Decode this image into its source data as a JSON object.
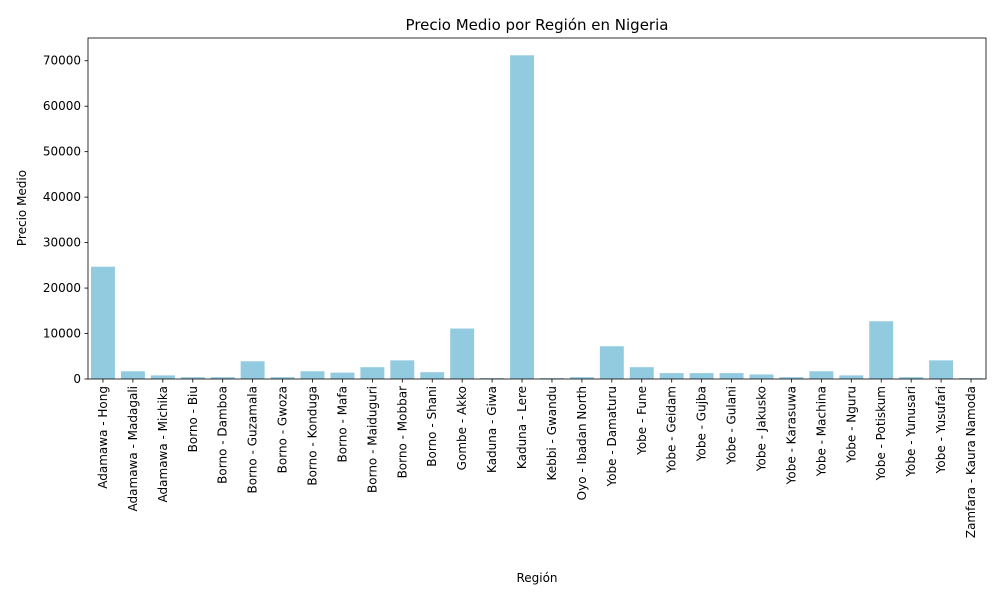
{
  "chart_data": {
    "type": "bar",
    "title": "Precio Medio por Región en Nigeria",
    "xlabel": "Región",
    "ylabel": "Precio Medio",
    "ylim": [
      0,
      75000
    ],
    "yticks": [
      0,
      10000,
      20000,
      30000,
      40000,
      50000,
      60000,
      70000
    ],
    "grid": false,
    "bar_color": "#92cbe0",
    "categories": [
      "Adamawa - Hong",
      "Adamawa - Madagali",
      "Adamawa - Michika",
      "Borno - Biu",
      "Borno - Damboa",
      "Borno - Guzamala",
      "Borno - Gwoza",
      "Borno - Konduga",
      "Borno - Mafa",
      "Borno - Maiduguri",
      "Borno - Mobbar",
      "Borno - Shani",
      "Gombe - Akko",
      "Kaduna - Giwa",
      "Kaduna - Lere",
      "Kebbi - Gwandu",
      "Oyo - Ibadan North",
      "Yobe - Damaturu",
      "Yobe - Fune",
      "Yobe - Geidam",
      "Yobe - Gujba",
      "Yobe - Gulani",
      "Yobe - Jakusko",
      "Yobe - Karasuwa",
      "Yobe - Machina",
      "Yobe - Nguru",
      "Yobe - Potiskum",
      "Yobe - Yunusari",
      "Yobe - Yusufari",
      "Zamfara - Kaura Namoda"
    ],
    "values": [
      24700,
      1700,
      800,
      400,
      400,
      3900,
      400,
      1700,
      1400,
      2600,
      4100,
      1500,
      11100,
      200,
      71200,
      200,
      400,
      7200,
      2600,
      1300,
      1300,
      1300,
      1000,
      400,
      1700,
      800,
      12700,
      400,
      4100,
      200
    ]
  }
}
